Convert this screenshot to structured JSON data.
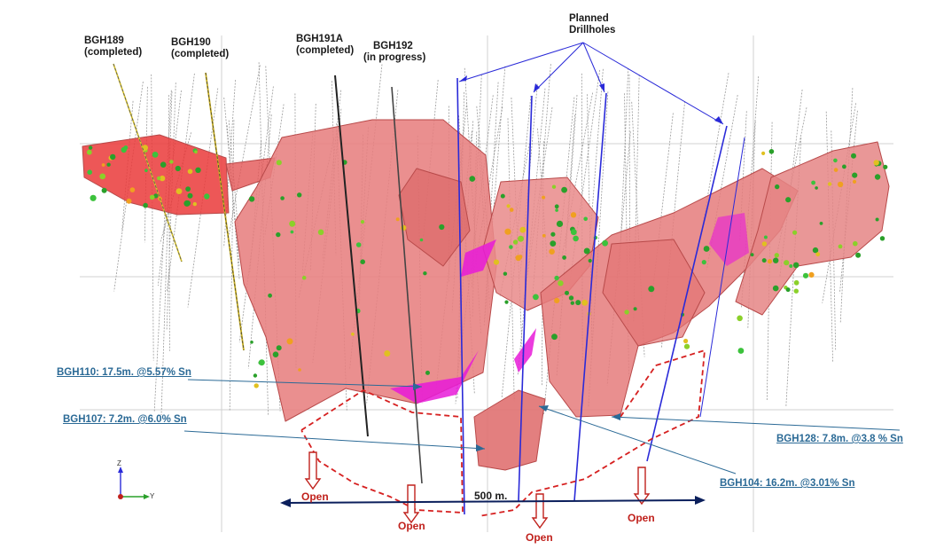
{
  "hole_labels": [
    {
      "id": "bgh189",
      "name": "BGH189",
      "status": "(completed)"
    },
    {
      "id": "bgh190",
      "name": "BGH190",
      "status": "(completed)"
    },
    {
      "id": "bgh191a",
      "name": "BGH191A",
      "status": "(completed)"
    },
    {
      "id": "bgh192",
      "name": "BGH192",
      "status": "(in progress)"
    }
  ],
  "planned": {
    "line1": "Planned",
    "line2": "Drillholes"
  },
  "intercepts": [
    {
      "id": "bgh110",
      "text": "BGH110: 17.5m. @5.57% Sn"
    },
    {
      "id": "bgh107",
      "text": "BGH107: 7.2m. @6.0% Sn"
    },
    {
      "id": "bgh128",
      "text": "BGH128: 7.8m. @3.8 % Sn"
    },
    {
      "id": "bgh104",
      "text": "BGH104: 16.2m. @3.01% Sn"
    }
  ],
  "open_label": "Open",
  "scale_label": "500 m.",
  "axis": {
    "z": "Z",
    "y": "Y"
  },
  "colors": {
    "orebody": "#e87878",
    "orebody_edge": "#b84a4a",
    "planned": "#2a2ad8",
    "intercept_text": "#2b6a96",
    "open": "#c0211c",
    "scale": "#0b1f5c"
  }
}
